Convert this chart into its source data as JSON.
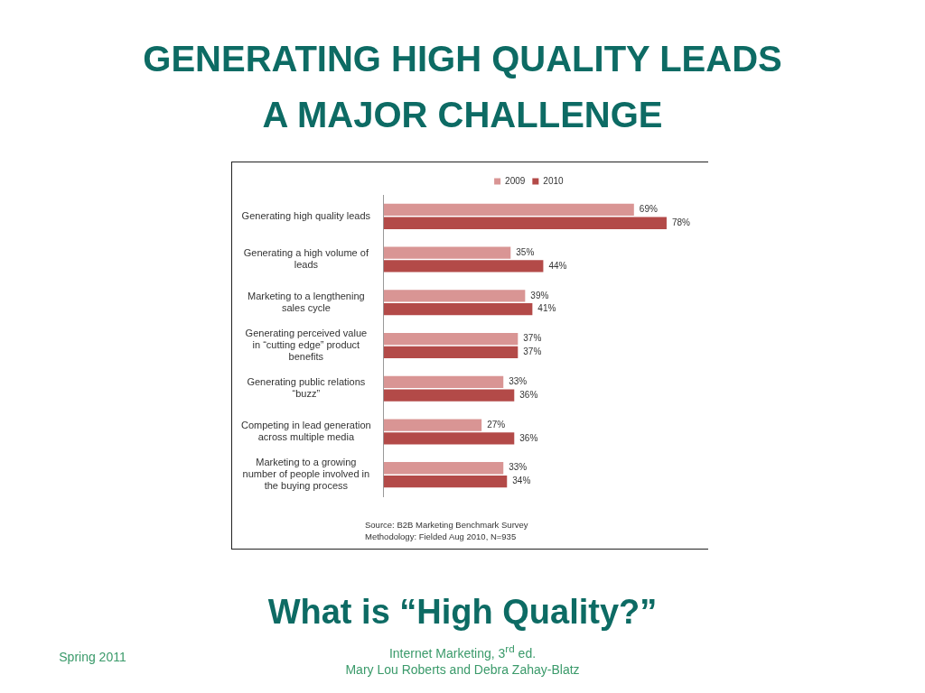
{
  "chart_data": {
    "type": "bar",
    "orientation": "horizontal",
    "title": "GENERATING HIGH QUALITY LEADS A MAJOR CHALLENGE",
    "categories": [
      "Generating high quality leads",
      "Generating a high volume of leads",
      "Marketing to a lengthening sales cycle",
      "Generating perceived value in “cutting edge” product benefits",
      "Generating public relations “buzz”",
      "Competing in lead generation across multiple media",
      "Marketing to a growing number of people involved in the buying process"
    ],
    "series": [
      {
        "name": "2009",
        "color": "#d99594",
        "values": [
          69,
          35,
          39,
          37,
          33,
          27,
          33
        ],
        "value_labels": [
          "69%",
          "35%",
          "39%",
          "37%",
          "33%",
          "27%",
          "33%"
        ]
      },
      {
        "name": "2010",
        "color": "#b34a48",
        "values": [
          78,
          44,
          41,
          37,
          36,
          36,
          34
        ],
        "value_labels": [
          "78%",
          "44%",
          "41%",
          "37%",
          "36%",
          "36%",
          "34%"
        ]
      }
    ],
    "tick_labels": "y",
    "grid": false,
    "legend": "top",
    "annotations": [
      "Source: B2B Marketing Benchmark Survey",
      "Methodology: Fielded Aug 2010, N=935",
      "What is “High Quality?”",
      "Spring 2011",
      "Internet Marketing, 3$^{rd}$ ed.",
      "Mary Lou Roberts and Debra Zahay-Blatz"
    ]
  }
}
